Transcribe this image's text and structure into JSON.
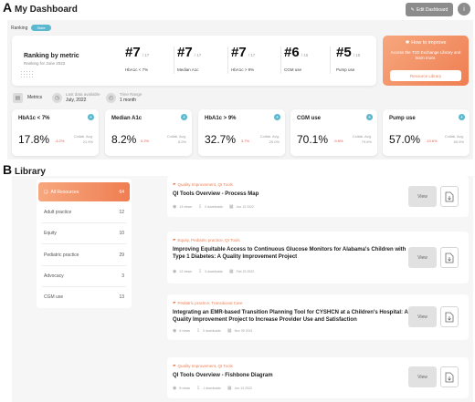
{
  "panel_a": "A",
  "panel_b": "B",
  "dashboard": {
    "title": "My Dashboard",
    "edit_label": "Edit Dashboard",
    "info_icon": "info-icon",
    "ranking_label": "Ranking",
    "ranking_pill": "State",
    "ranking_title": "Ranking by metric",
    "ranking_subtitle": "Ranking for June 2022",
    "rankings": [
      {
        "rank": "#7",
        "total": "/ 17",
        "metric": "HbA1c < 7%"
      },
      {
        "rank": "#7",
        "total": "/ 17",
        "metric": "Median A1c"
      },
      {
        "rank": "#7",
        "total": "/ 17",
        "metric": "HbA1c > 9%"
      },
      {
        "rank": "#6",
        "total": "/ 16",
        "metric": "CGM use"
      },
      {
        "rank": "#5",
        "total": "/ 15",
        "metric": "Pump use"
      }
    ],
    "improve": {
      "title": "How to improve",
      "text": "Access the T1D Exchange Library and learn more.",
      "button": "Resource Library"
    },
    "metrics_label": "Metrics",
    "last_data_label": "Last data available",
    "last_data_value": "July, 2022",
    "time_range_label": "Time Range",
    "time_range_value": "1 month",
    "metric_cards": [
      {
        "name": "HbA1c < 7%",
        "value": "17.8%",
        "delta": "-4.2%",
        "collab_label": "Collab. Avg.",
        "collab_value": "21.9%"
      },
      {
        "name": "Median A1c",
        "value": "8.2%",
        "delta": "0.2%",
        "collab_label": "Collab. Avg.",
        "collab_value": "8.0%"
      },
      {
        "name": "HbA1c > 9%",
        "value": "32.7%",
        "delta": "3.7%",
        "collab_label": "Collab. Avg.",
        "collab_value": "29.0%"
      },
      {
        "name": "CGM use",
        "value": "70.1%",
        "delta": "-9.8%",
        "collab_label": "Collab. Avg.",
        "collab_value": "79.8%"
      },
      {
        "name": "Pump use",
        "value": "57.0%",
        "delta": "-13.6%",
        "collab_label": "Collab. Avg.",
        "collab_value": "69.5%"
      }
    ]
  },
  "library": {
    "title": "Library",
    "categories": [
      {
        "label": "All Resources",
        "count": "64",
        "active": true
      },
      {
        "label": "Adult practice",
        "count": "12"
      },
      {
        "label": "Equity",
        "count": "10"
      },
      {
        "label": "Pediatric practice",
        "count": "29"
      },
      {
        "label": "Advocacy",
        "count": "3"
      },
      {
        "label": "CGM use",
        "count": "13"
      }
    ],
    "resources": [
      {
        "tags": "Quality Improvement, QI Tools",
        "title": "QI Tools Overview - Process Map",
        "views": "13 views",
        "downloads": "0 downloads",
        "date": "Jun 13 2022",
        "view": "View"
      },
      {
        "tags": "Equity, Pediatric practice, QI Tools",
        "title": "Improving Equitable Access to Continuous Glucose Monitors for Alabama's Children with Type 1 Diabetes: A Quality Improvement Project",
        "views": "12 views",
        "downloads": "0 downloads",
        "date": "Feb 23 2022",
        "view": "View"
      },
      {
        "tags": "Pediatric practice, Transitional Care",
        "title": "Integrating an EMR-based Transition Planning Tool for CYSHCN at a Children's Hospital: A Quality Improvement Project to Increase Provider Use and Satisfaction",
        "views": "6 views",
        "downloads": "0 downloads",
        "date": "Nov 09 2021",
        "view": "View"
      },
      {
        "tags": "Quality Improvement, QI Tools",
        "title": "QI Tools Overview - Fishbone Diagram",
        "views": "8 views",
        "downloads": "1 downloads",
        "date": "Jun 13 2022",
        "view": "View"
      }
    ]
  }
}
